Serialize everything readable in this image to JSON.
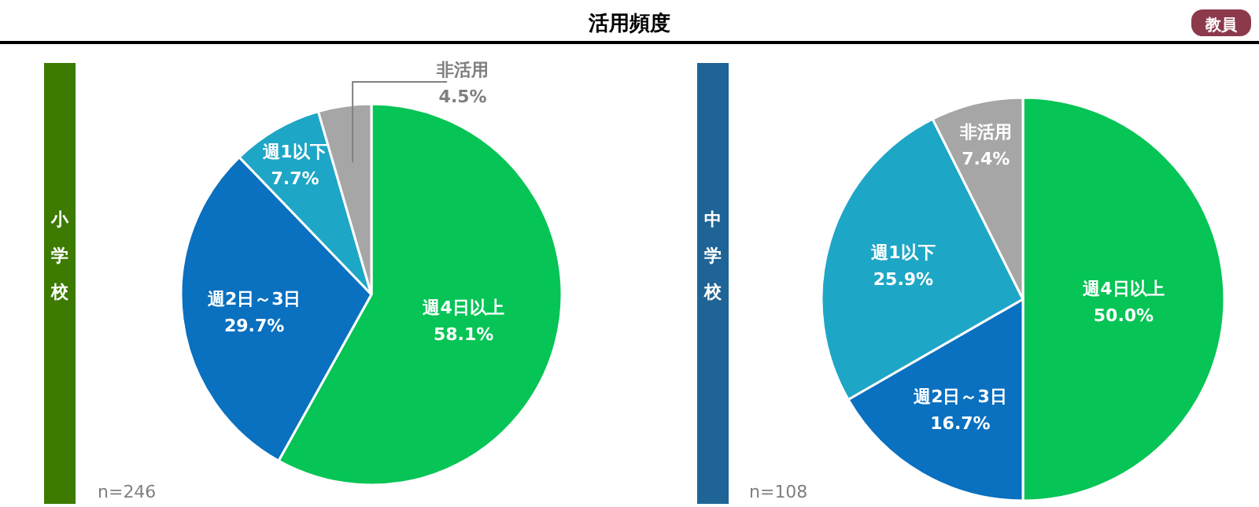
{
  "chart_data": [
    {
      "type": "pie",
      "title": "小学校",
      "annotations": [
        "活用頻度",
        "教員",
        "n=246"
      ],
      "categories": [
        "週4日以上",
        "週2日～3日",
        "週1以下",
        "非活用"
      ],
      "values": [
        58.1,
        29.7,
        7.7,
        4.5
      ],
      "value_labels": [
        "58.1%",
        "29.7%",
        "7.7%",
        "4.5%"
      ],
      "colors": [
        "#06c455",
        "#0a70c0",
        "#1ea6c6",
        "#a6a6a6"
      ]
    },
    {
      "type": "pie",
      "title": "中学校",
      "annotations": [
        "n=108"
      ],
      "categories": [
        "週4日以上",
        "週2日～3日",
        "週1以下",
        "非活用"
      ],
      "values": [
        50.0,
        16.7,
        25.9,
        7.4
      ],
      "value_labels": [
        "50.0%",
        "16.7%",
        "25.9%",
        "7.4%"
      ],
      "colors": [
        "#06c455",
        "#0a70c0",
        "#1ea6c6",
        "#a6a6a6"
      ]
    }
  ]
}
